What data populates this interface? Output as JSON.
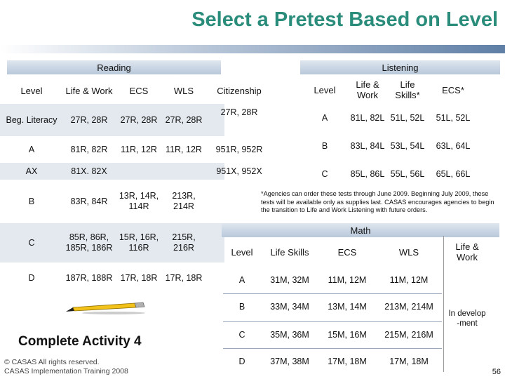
{
  "title": "Select a Pretest Based on Level",
  "reading": {
    "header": "Reading",
    "columns": [
      "Level",
      "Life & Work",
      "ECS",
      "WLS",
      "Citizenship"
    ],
    "rows": [
      [
        "Beg. Literacy",
        "27R, 28R",
        "27R, 28R",
        "27R, 28R",
        "27R, 28R"
      ],
      [
        "A",
        "81R, 82R",
        "11R, 12R",
        "11R, 12R",
        "951R, 952R"
      ],
      [
        "AX",
        "81X. 82X",
        "",
        "",
        "951X, 952X"
      ],
      [
        "B",
        "83R, 84R",
        "13R, 14R, 114R",
        "213R, 214R",
        ""
      ],
      [
        "C",
        "85R, 86R, 185R, 186R",
        "15R, 16R, 116R",
        "215R, 216R",
        ""
      ],
      [
        "D",
        "187R, 188R",
        "17R, 18R",
        "17R, 18R",
        ""
      ]
    ]
  },
  "listening": {
    "header": "Listening",
    "columns": [
      "Level",
      "Life & Work",
      "Life Skills*",
      "ECS*"
    ],
    "rows": [
      [
        "A",
        "81L, 82L",
        "51L, 52L",
        "51L, 52L"
      ],
      [
        "B",
        "83L, 84L",
        "53L, 54L",
        "63L, 64L"
      ],
      [
        "C",
        "85L, 86L",
        "55L, 56L",
        "65L, 66L"
      ]
    ],
    "note": "*Agencies can order these tests through June 2009. Beginning July 2009, these tests will be available only as supplies last. CASAS encourages agencies to begin the transition to Life and Work Listening with future orders."
  },
  "math": {
    "header": "Math",
    "columns": [
      "Level",
      "Life Skills",
      "ECS",
      "WLS",
      "Life & Work"
    ],
    "rows": [
      [
        "A",
        "31M, 32M",
        "11M, 12M",
        "11M, 12M"
      ],
      [
        "B",
        "33M, 34M",
        "13M, 14M",
        "213M, 214M"
      ],
      [
        "C",
        "35M, 36M",
        "15M, 16M",
        "215M, 216M"
      ],
      [
        "D",
        "37M, 38M",
        "17M, 18M",
        "17M, 18M"
      ]
    ],
    "life_work_note": "In develop -ment"
  },
  "activity": "Complete Activity 4",
  "footer": {
    "line1": "© CASAS All rights reserved.",
    "line2": "CASAS Implementation Training 2008"
  },
  "page_number": "56",
  "icons": {
    "pencil": "pencil-icon"
  },
  "colors": {
    "title": "#2a8c7a",
    "header_bar": "#c8d4e2",
    "band": "#e4e9ef"
  }
}
